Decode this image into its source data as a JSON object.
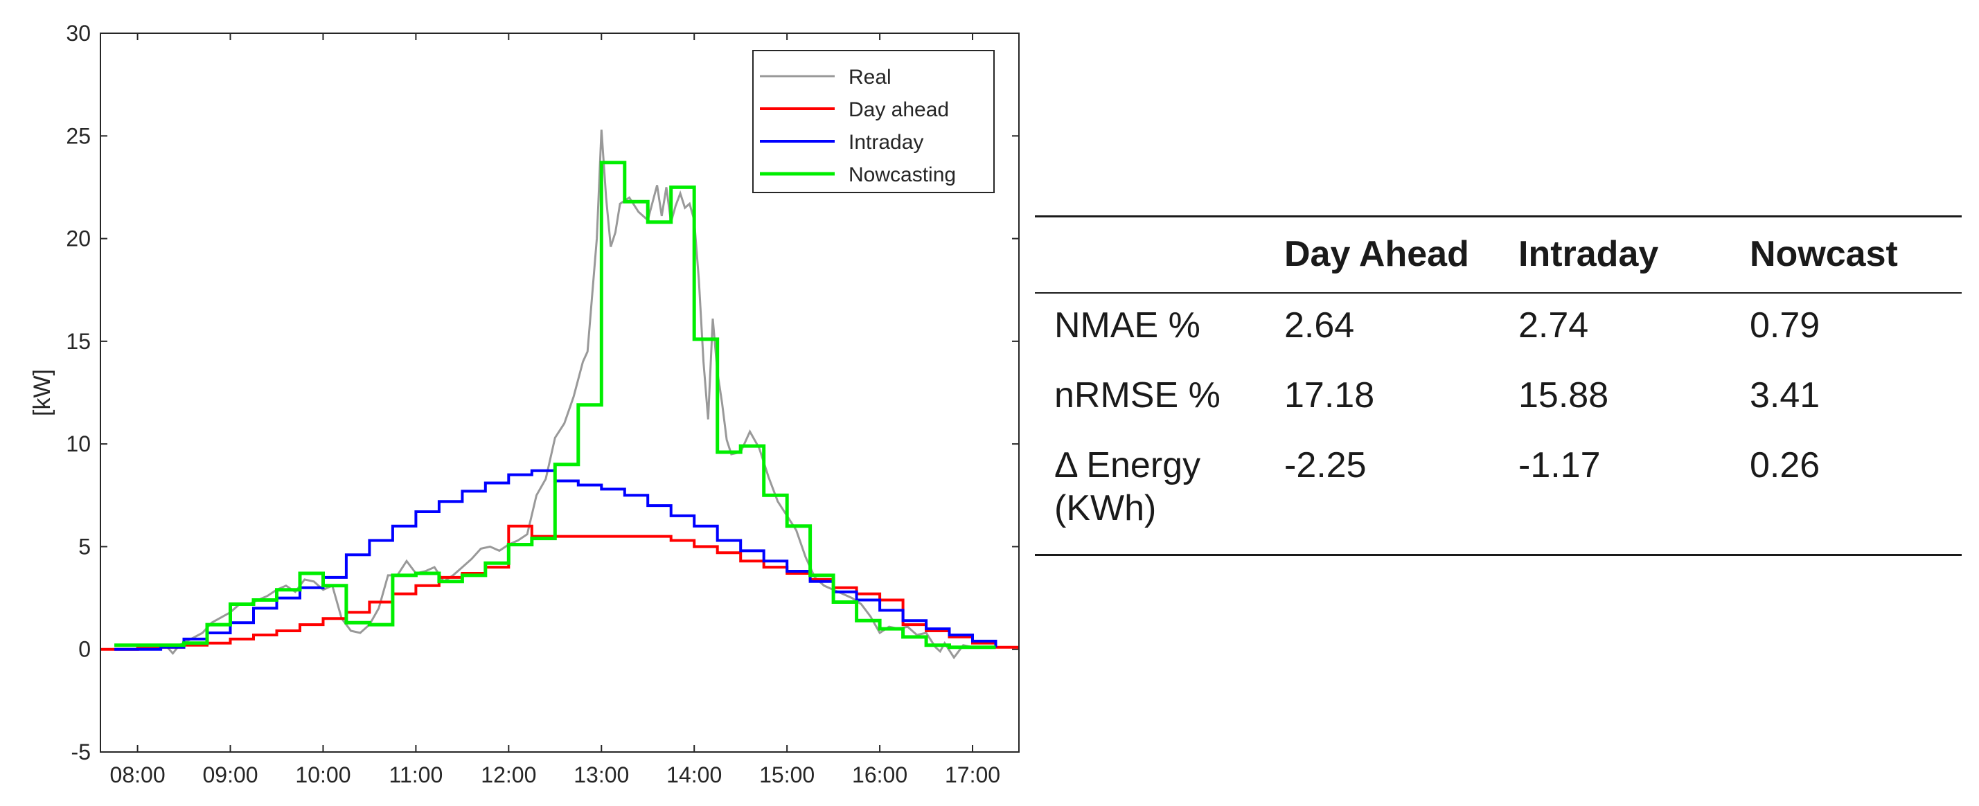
{
  "chart_data": {
    "type": "line",
    "title": "",
    "xlabel": "",
    "ylabel": "[kW]",
    "xlim": [
      7.6,
      17.5
    ],
    "ylim": [
      -5,
      30
    ],
    "yticks": [
      -5,
      0,
      5,
      10,
      15,
      20,
      25,
      30
    ],
    "ytick_labels": [
      "-5",
      "0",
      "5",
      "10",
      "15",
      "20",
      "25",
      "30"
    ],
    "xticks": [
      8,
      9,
      10,
      11,
      12,
      13,
      14,
      15,
      16,
      17
    ],
    "xtick_labels": [
      "08:00",
      "09:00",
      "10:00",
      "11:00",
      "12:00",
      "13:00",
      "14:00",
      "15:00",
      "16:00",
      "17:00"
    ],
    "legend_position": "top-right",
    "series": [
      {
        "name": "Real",
        "color": "#999999",
        "step": false,
        "x": [
          7.75,
          8.0,
          8.3,
          8.38,
          8.45,
          8.7,
          8.8,
          9.0,
          9.1,
          9.2,
          9.3,
          9.4,
          9.5,
          9.6,
          9.7,
          9.8,
          9.9,
          10.0,
          10.1,
          10.2,
          10.3,
          10.4,
          10.5,
          10.6,
          10.7,
          10.8,
          10.9,
          11.0,
          11.1,
          11.2,
          11.3,
          11.4,
          11.5,
          11.6,
          11.7,
          11.8,
          11.9,
          12.0,
          12.1,
          12.2,
          12.3,
          12.4,
          12.5,
          12.6,
          12.7,
          12.8,
          12.85,
          12.95,
          13.0,
          13.05,
          13.1,
          13.15,
          13.2,
          13.3,
          13.4,
          13.5,
          13.6,
          13.65,
          13.7,
          13.75,
          13.8,
          13.85,
          13.9,
          13.95,
          14.0,
          14.05,
          14.1,
          14.15,
          14.2,
          14.25,
          14.3,
          14.35,
          14.4,
          14.5,
          14.6,
          14.7,
          14.8,
          14.9,
          15.0,
          15.1,
          15.2,
          15.3,
          15.4,
          15.5,
          15.6,
          15.7,
          15.8,
          15.9,
          16.0,
          16.1,
          16.2,
          16.3,
          16.4,
          16.5,
          16.6,
          16.65,
          16.7,
          16.8,
          16.9,
          17.0,
          17.2,
          17.4
        ],
        "values": [
          0.2,
          0.2,
          0.2,
          -0.2,
          0.2,
          0.8,
          1.3,
          1.8,
          2.2,
          2.2,
          2.4,
          2.6,
          2.9,
          3.1,
          2.8,
          3.4,
          3.3,
          2.9,
          3.1,
          1.5,
          0.9,
          0.8,
          1.2,
          2.0,
          3.6,
          3.6,
          4.3,
          3.7,
          3.8,
          4.0,
          3.3,
          3.6,
          4.0,
          4.4,
          4.9,
          5.0,
          4.8,
          5.1,
          5.3,
          5.6,
          7.5,
          8.3,
          10.3,
          11.0,
          12.3,
          14.0,
          14.5,
          20.0,
          25.3,
          22.0,
          19.6,
          20.3,
          21.7,
          22.0,
          21.3,
          20.9,
          22.6,
          21.1,
          22.5,
          20.8,
          21.6,
          22.2,
          21.5,
          21.7,
          20.9,
          18.0,
          14.0,
          11.2,
          16.1,
          13.5,
          12.0,
          10.2,
          9.5,
          9.6,
          10.6,
          9.8,
          8.4,
          7.2,
          6.5,
          5.8,
          4.5,
          3.5,
          3.1,
          2.9,
          2.7,
          2.5,
          2.2,
          1.6,
          0.8,
          1.1,
          1.0,
          1.1,
          0.7,
          0.8,
          0.1,
          -0.1,
          0.3,
          -0.4,
          0.2,
          0.1,
          0.1,
          0.1
        ]
      },
      {
        "name": "Day ahead",
        "color": "#ff0000",
        "step": true,
        "x": [
          7.6,
          8.0,
          8.25,
          8.5,
          8.75,
          9.0,
          9.25,
          9.5,
          9.75,
          10.0,
          10.25,
          10.5,
          10.75,
          11.0,
          11.25,
          11.5,
          11.75,
          12.0,
          12.25,
          12.5,
          12.75,
          13.0,
          13.25,
          13.5,
          13.75,
          14.0,
          14.25,
          14.5,
          14.75,
          15.0,
          15.25,
          15.5,
          15.75,
          16.0,
          16.25,
          16.5,
          16.75,
          17.0,
          17.25,
          17.5
        ],
        "values": [
          0.0,
          0.05,
          0.1,
          0.2,
          0.3,
          0.5,
          0.7,
          0.9,
          1.2,
          1.5,
          1.8,
          2.3,
          2.7,
          3.1,
          3.5,
          3.7,
          4.0,
          6.0,
          5.5,
          5.5,
          5.5,
          5.5,
          5.5,
          5.5,
          5.3,
          5.0,
          4.7,
          4.3,
          4.0,
          3.7,
          3.4,
          3.0,
          2.7,
          2.4,
          1.2,
          0.9,
          0.6,
          0.3,
          0.1,
          0.0
        ]
      },
      {
        "name": "Intraday",
        "color": "#0000ff",
        "step": true,
        "x": [
          7.75,
          8.0,
          8.25,
          8.5,
          8.75,
          9.0,
          9.25,
          9.5,
          9.75,
          10.0,
          10.25,
          10.5,
          10.75,
          11.0,
          11.25,
          11.5,
          11.75,
          12.0,
          12.25,
          12.5,
          12.75,
          13.0,
          13.25,
          13.5,
          13.75,
          14.0,
          14.25,
          14.5,
          14.75,
          15.0,
          15.25,
          15.5,
          15.75,
          16.0,
          16.25,
          16.5,
          16.75,
          17.0,
          17.25
        ],
        "values": [
          0.0,
          0.0,
          0.1,
          0.5,
          0.8,
          1.3,
          2.0,
          2.5,
          3.0,
          3.5,
          4.6,
          5.3,
          6.0,
          6.7,
          7.2,
          7.7,
          8.1,
          8.5,
          8.7,
          8.2,
          8.0,
          7.8,
          7.5,
          7.0,
          6.5,
          6.0,
          5.3,
          4.8,
          4.3,
          3.8,
          3.3,
          2.8,
          2.4,
          1.9,
          1.4,
          1.0,
          0.7,
          0.4,
          0.1
        ]
      },
      {
        "name": "Nowcasting",
        "color": "#00ee00",
        "step": true,
        "x": [
          7.75,
          8.0,
          8.25,
          8.5,
          8.75,
          9.0,
          9.25,
          9.5,
          9.75,
          10.0,
          10.25,
          10.5,
          10.75,
          11.0,
          11.25,
          11.5,
          11.75,
          12.0,
          12.25,
          12.5,
          12.75,
          13.0,
          13.25,
          13.5,
          13.75,
          14.0,
          14.25,
          14.5,
          14.75,
          15.0,
          15.25,
          15.5,
          15.75,
          16.0,
          16.25,
          16.5,
          16.75,
          17.0,
          17.25
        ],
        "values": [
          0.2,
          0.2,
          0.2,
          0.3,
          1.2,
          2.2,
          2.4,
          2.9,
          3.7,
          3.1,
          1.3,
          1.2,
          3.6,
          3.7,
          3.3,
          3.6,
          4.2,
          5.1,
          5.4,
          9.0,
          11.9,
          23.7,
          21.8,
          20.8,
          22.5,
          15.1,
          9.6,
          9.9,
          7.5,
          6.0,
          3.6,
          2.3,
          1.4,
          1.0,
          0.6,
          0.2,
          0.1,
          0.1,
          0.1
        ]
      }
    ]
  },
  "table": {
    "headers": [
      "",
      "Day Ahead",
      "Intraday",
      "Nowcast"
    ],
    "rows": [
      {
        "label": "NMAE %",
        "values": [
          "2.64",
          "2.74",
          "0.79"
        ]
      },
      {
        "label": "nRMSE %",
        "values": [
          "17.18",
          "15.88",
          "3.41"
        ]
      },
      {
        "label_line1": "Δ Energy",
        "label_line2": "(KWh)",
        "values": [
          "-2.25",
          "-1.17",
          "0.26"
        ]
      }
    ]
  }
}
